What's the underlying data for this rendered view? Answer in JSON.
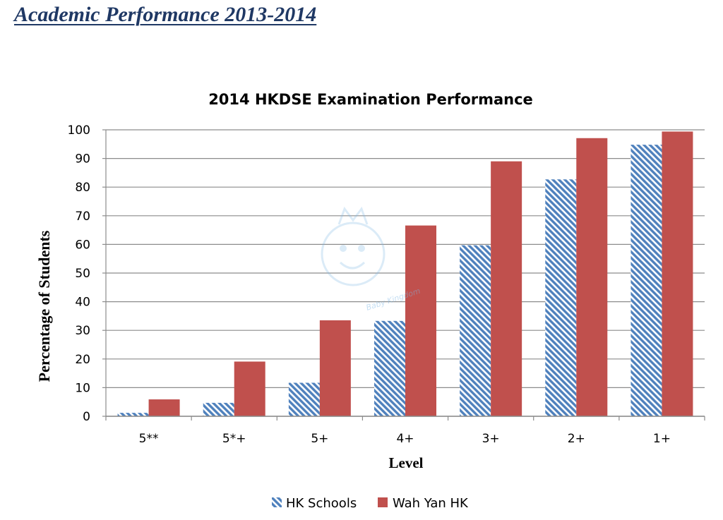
{
  "page": {
    "heading": "Academic Performance 2013-2014"
  },
  "colors": {
    "heading": "#1F3864",
    "hk_schools": "#4F81BD",
    "wah_yan": "#C0504D",
    "grid": "#8c8c8c",
    "axis": "#8c8c8c"
  },
  "watermark": {
    "icon": "baby-kingdom-watermark-icon",
    "text": "Baby Kingdom"
  },
  "chart_data": {
    "type": "bar",
    "title": "2014 HKDSE Examination Performance",
    "xlabel": "Level",
    "ylabel": "Percentage of Students",
    "categories": [
      "5**",
      "5*+",
      "5+",
      "4+",
      "3+",
      "2+",
      "1+"
    ],
    "series": [
      {
        "name": "HK Schools",
        "color": "#4F81BD",
        "pattern": "diagonal-hatch",
        "values": [
          1.2,
          4.7,
          11.7,
          33.3,
          59.7,
          82.7,
          94.8
        ]
      },
      {
        "name": "Wah Yan HK",
        "color": "#C0504D",
        "pattern": "solid",
        "values": [
          5.9,
          19.1,
          33.5,
          66.6,
          89.0,
          97.1,
          99.4
        ]
      }
    ],
    "ylim": [
      0,
      100
    ],
    "yticks": [
      0,
      10,
      20,
      30,
      40,
      50,
      60,
      70,
      80,
      90,
      100
    ],
    "grid": true,
    "legend": "bottom"
  }
}
